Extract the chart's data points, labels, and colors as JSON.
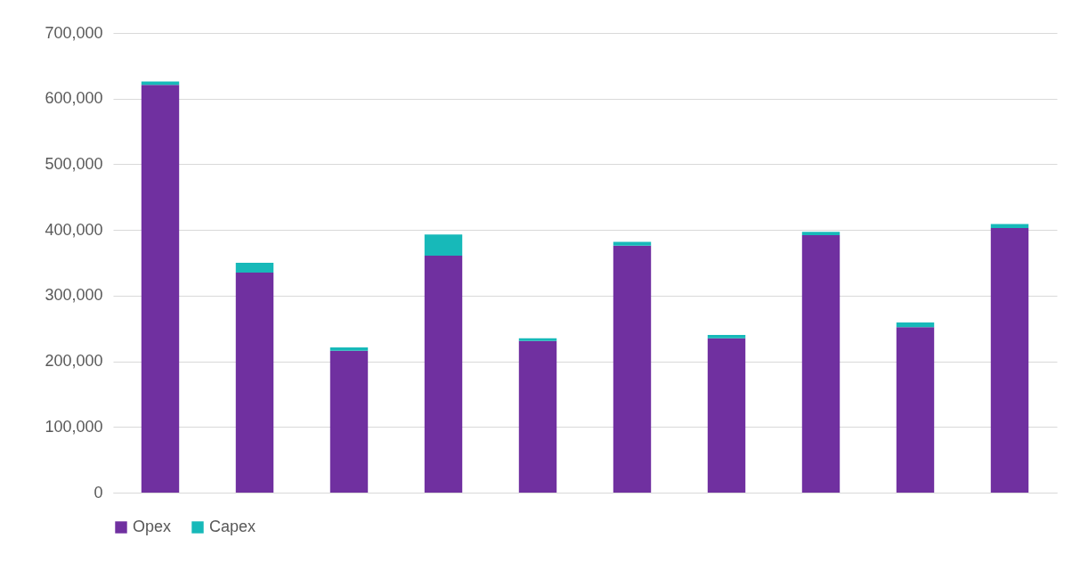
{
  "chart_data": {
    "type": "bar",
    "stacked": true,
    "categories": [
      null,
      null,
      null,
      null,
      null,
      null,
      null,
      null,
      null,
      null
    ],
    "series": [
      {
        "name": "Opex",
        "color": "#7030a0",
        "values": [
          621000,
          335000,
          216000,
          361000,
          231000,
          376000,
          235000,
          392000,
          252000,
          403000
        ]
      },
      {
        "name": "Capex",
        "color": "#17b9b9",
        "values": [
          5000,
          15000,
          5000,
          32000,
          4000,
          6000,
          5000,
          5000,
          7000,
          6000
        ]
      }
    ],
    "ylim": [
      0,
      700000
    ],
    "yticks": [
      {
        "value": 0,
        "label": "0"
      },
      {
        "value": 100000,
        "label": "100,000"
      },
      {
        "value": 200000,
        "label": "200,000"
      },
      {
        "value": 300000,
        "label": "300,000"
      },
      {
        "value": 400000,
        "label": "400,000"
      },
      {
        "value": 500000,
        "label": "500,000"
      },
      {
        "value": 600000,
        "label": "600,000"
      },
      {
        "value": 700000,
        "label": "700,000"
      }
    ],
    "grid": "y",
    "legend": "bottom"
  }
}
